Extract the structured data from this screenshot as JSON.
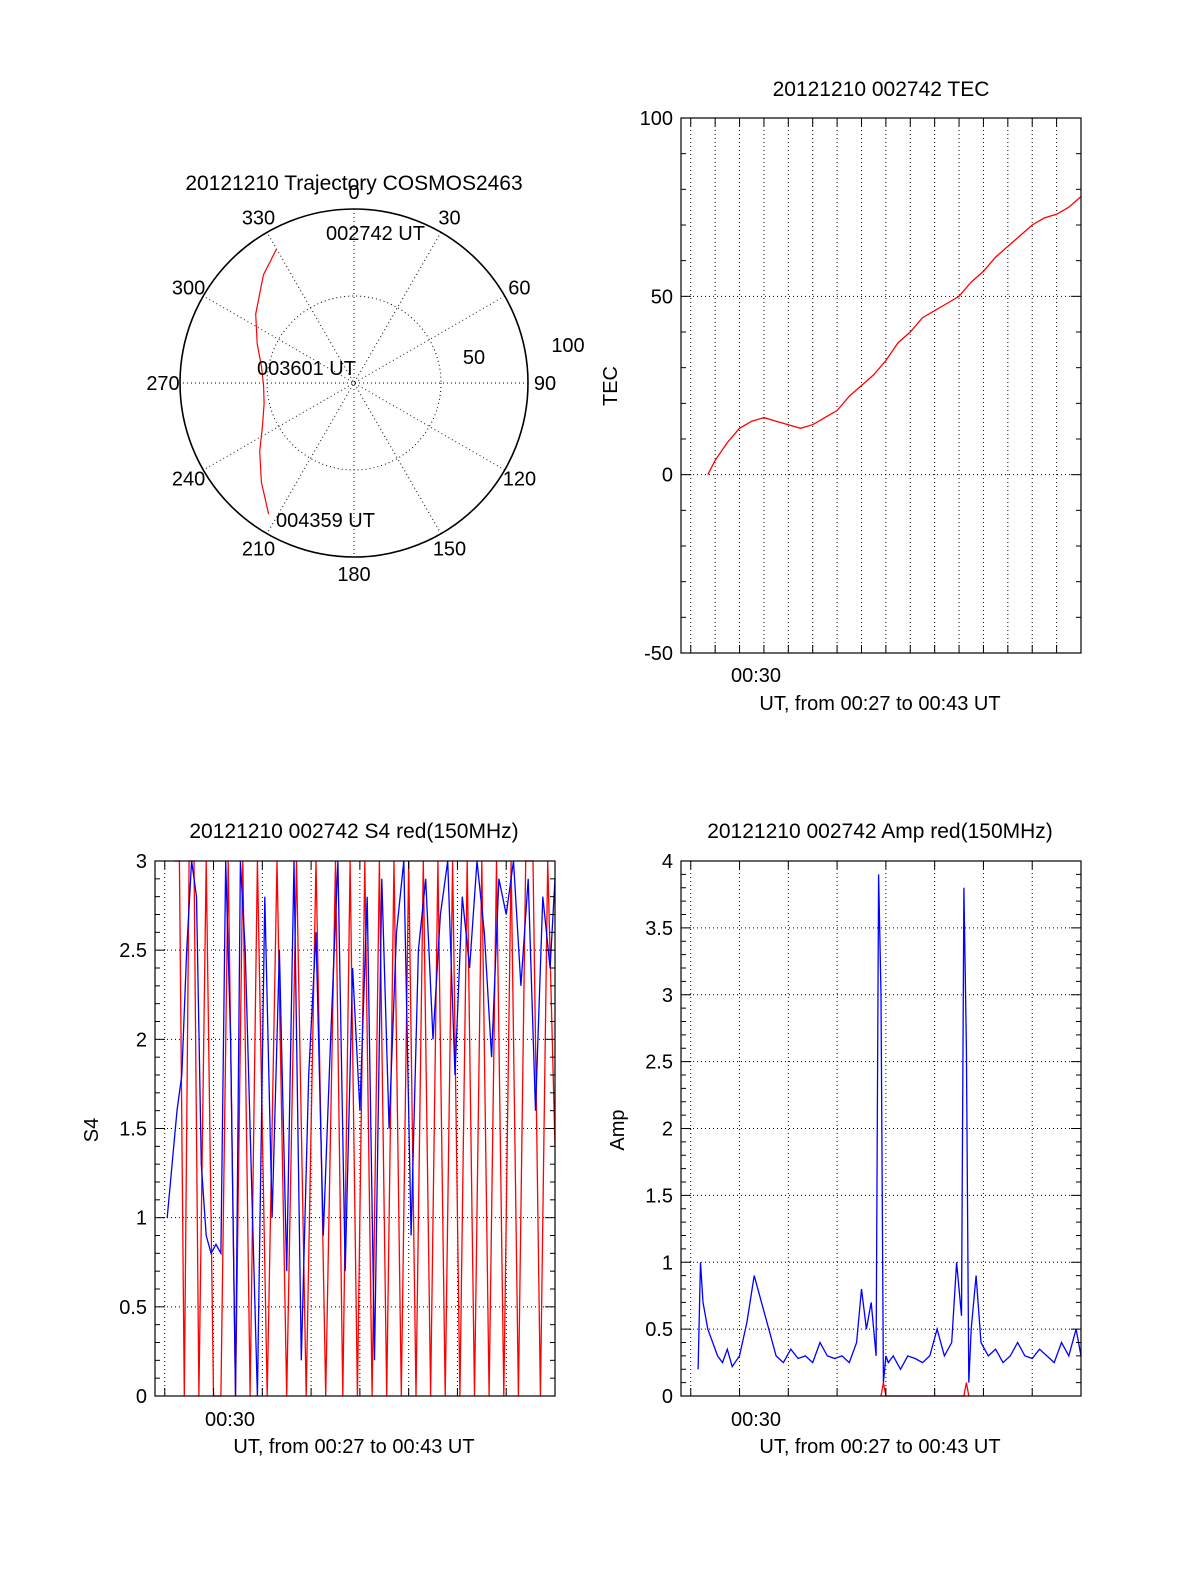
{
  "colors": {
    "red": "#ff0000",
    "blue": "#0000ff",
    "axis": "#000000"
  },
  "polar": {
    "title": "20121210 Trajectory COSMOS2463",
    "azimuth_labels": [
      "0",
      "30",
      "60",
      "90",
      "120",
      "150",
      "180",
      "210",
      "240",
      "270",
      "300",
      "330"
    ],
    "radius_labels": [
      "50",
      "100"
    ],
    "annotations": [
      "002742 UT",
      "003601 UT",
      "004359 UT"
    ],
    "trajectory": {
      "azimuth_deg": [
        330,
        320,
        305,
        292,
        280,
        268,
        257,
        245,
        234,
        223,
        213
      ],
      "elevation_deg": [
        11,
        19,
        31,
        40,
        46,
        48,
        47,
        42,
        33,
        22,
        10
      ]
    }
  },
  "chart_data": [
    {
      "type": "line",
      "title": "20121210 002742 TEC",
      "xlabel": "UT, from 00:27 to 00:43 UT",
      "ylabel": "TEC",
      "xtick_label": "00:30",
      "xlim_minutes": [
        26.6,
        43.0
      ],
      "ylim": [
        -50,
        100
      ],
      "yticks": [
        "100",
        "50",
        "0",
        "-50"
      ],
      "grid": true,
      "series": [
        {
          "color": "red",
          "x_minutes": [
            27.7,
            28.0,
            28.5,
            29.0,
            29.5,
            30.0,
            30.5,
            31.0,
            31.5,
            32.0,
            32.5,
            33.0,
            33.5,
            34.0,
            34.5,
            35.0,
            35.5,
            36.0,
            36.5,
            37.0,
            37.5,
            38.0,
            38.5,
            39.0,
            39.5,
            40.0,
            40.5,
            41.0,
            41.5,
            42.0,
            42.5,
            43.0
          ],
          "values": [
            0,
            4,
            9,
            13,
            15,
            16,
            15,
            14,
            13,
            14,
            16,
            18,
            22,
            25,
            28,
            32,
            37,
            40,
            44,
            46,
            48,
            50,
            54,
            57,
            61,
            64,
            67,
            70,
            72,
            73,
            75,
            78
          ]
        }
      ]
    },
    {
      "type": "line",
      "title": "20121210 002742 S4 red(150MHz)",
      "xlabel": "UT, from 00:27 to 00:43 UT",
      "ylabel": "S4",
      "xtick_label": "00:30",
      "xlim_minutes": [
        26.6,
        43.0
      ],
      "ylim": [
        0,
        3
      ],
      "yticks": [
        "3",
        "2.5",
        "2",
        "1.5",
        "1",
        "0.5",
        "0"
      ],
      "grid": true,
      "series": [
        {
          "color": "red",
          "x_minutes": [
            27.4,
            27.6,
            27.8,
            28.0,
            28.2,
            28.4,
            28.7,
            29.0,
            29.3,
            29.6,
            29.9,
            30.2,
            30.5,
            30.8,
            31.2,
            31.6,
            32.0,
            32.4,
            32.8,
            33.2,
            33.6,
            34.0,
            34.3,
            34.6,
            34.9,
            35.2,
            35.5,
            35.8,
            36.1,
            36.4,
            36.7,
            37.0,
            37.3,
            37.6,
            37.9,
            38.2,
            38.5,
            38.8,
            39.1,
            39.4,
            39.7,
            40.0,
            40.3,
            40.6,
            40.9,
            41.2,
            41.5,
            41.8,
            42.1,
            42.4,
            42.7,
            43.0
          ],
          "values": [
            3,
            3,
            0,
            3,
            3,
            0,
            3,
            0,
            0,
            3,
            0,
            3,
            0,
            3,
            0,
            3,
            0,
            3,
            0,
            3,
            0,
            3,
            0,
            3,
            0,
            3,
            0,
            3,
            0,
            3,
            0,
            3,
            0,
            3,
            0,
            3,
            0,
            3,
            0,
            3,
            0,
            3,
            0,
            3,
            0,
            3,
            0,
            3,
            3,
            0,
            3,
            1.4
          ]
        },
        {
          "color": "blue",
          "x_minutes": [
            27.1,
            27.3,
            27.5,
            27.7,
            27.9,
            28.1,
            28.3,
            28.5,
            28.7,
            28.9,
            29.1,
            29.3,
            29.5,
            29.7,
            29.9,
            30.1,
            30.3,
            30.5,
            30.8,
            31.1,
            31.4,
            31.7,
            32.0,
            32.3,
            32.6,
            32.9,
            33.2,
            33.5,
            33.8,
            34.1,
            34.4,
            34.7,
            35.0,
            35.3,
            35.6,
            35.9,
            36.2,
            36.5,
            36.8,
            37.1,
            37.4,
            37.7,
            38.0,
            38.3,
            38.6,
            38.9,
            39.2,
            39.5,
            39.8,
            40.1,
            40.4,
            40.7,
            41.0,
            41.3,
            41.6,
            41.9,
            42.2,
            42.5,
            42.8,
            43.0
          ],
          "values": [
            1.0,
            1.3,
            1.6,
            1.8,
            2.5,
            3.0,
            2.8,
            1.3,
            0.9,
            0.8,
            0.85,
            0.8,
            3.0,
            2.0,
            0.0,
            3.0,
            2.5,
            1.5,
            0.0,
            2.8,
            1.0,
            2.5,
            0.7,
            3.0,
            0.2,
            1.8,
            2.6,
            0.9,
            2.0,
            3.0,
            0.7,
            2.4,
            1.6,
            2.8,
            0.2,
            2.9,
            1.5,
            2.6,
            3.0,
            0.9,
            2.5,
            2.9,
            2.0,
            2.7,
            3.0,
            1.8,
            2.8,
            2.4,
            3.0,
            2.6,
            1.9,
            2.9,
            2.7,
            3.0,
            2.3,
            2.9,
            1.6,
            2.8,
            2.4,
            2.9
          ]
        }
      ]
    },
    {
      "type": "line",
      "title": "20121210 002742 Amp red(150MHz)",
      "xlabel": "UT, from 00:27 to 00:43 UT",
      "ylabel": "Amp",
      "xtick_label": "00:30",
      "xlim_minutes": [
        26.6,
        43.0
      ],
      "ylim": [
        0,
        4
      ],
      "yticks": [
        "4",
        "3.5",
        "3",
        "2.5",
        "2",
        "1.5",
        "1",
        "0.5",
        "0"
      ],
      "grid": true,
      "series": [
        {
          "color": "blue",
          "x_minutes": [
            27.3,
            27.4,
            27.5,
            27.7,
            27.9,
            28.1,
            28.3,
            28.5,
            28.7,
            29.0,
            29.3,
            29.6,
            29.9,
            30.2,
            30.5,
            30.8,
            31.1,
            31.4,
            31.7,
            32.0,
            32.3,
            32.6,
            32.9,
            33.2,
            33.5,
            33.8,
            34.0,
            34.2,
            34.4,
            34.6,
            34.7,
            34.8,
            34.9,
            35.0,
            35.1,
            35.3,
            35.6,
            35.9,
            36.2,
            36.5,
            36.8,
            37.1,
            37.4,
            37.7,
            37.9,
            38.1,
            38.2,
            38.3,
            38.4,
            38.5,
            38.7,
            38.9,
            39.2,
            39.5,
            39.8,
            40.1,
            40.4,
            40.7,
            41.0,
            41.3,
            41.6,
            41.9,
            42.2,
            42.5,
            42.8,
            43.0
          ],
          "values": [
            0.2,
            1.0,
            0.7,
            0.5,
            0.4,
            0.3,
            0.25,
            0.35,
            0.22,
            0.3,
            0.55,
            0.9,
            0.7,
            0.5,
            0.3,
            0.25,
            0.35,
            0.28,
            0.3,
            0.25,
            0.4,
            0.3,
            0.28,
            0.3,
            0.25,
            0.4,
            0.8,
            0.5,
            0.7,
            0.3,
            3.9,
            3.0,
            0.1,
            0.3,
            0.25,
            0.3,
            0.2,
            0.3,
            0.28,
            0.25,
            0.3,
            0.5,
            0.3,
            0.4,
            1.0,
            0.6,
            3.8,
            2.6,
            0.1,
            0.5,
            0.9,
            0.4,
            0.3,
            0.35,
            0.25,
            0.3,
            0.4,
            0.3,
            0.28,
            0.35,
            0.3,
            0.25,
            0.4,
            0.3,
            0.5,
            0.3
          ]
        },
        {
          "color": "red",
          "x_minutes": [
            34.8,
            34.9,
            35.0,
            38.2,
            38.3,
            38.4
          ],
          "values": [
            0.0,
            0.1,
            0.0,
            0.0,
            0.1,
            0.0
          ]
        }
      ]
    }
  ]
}
